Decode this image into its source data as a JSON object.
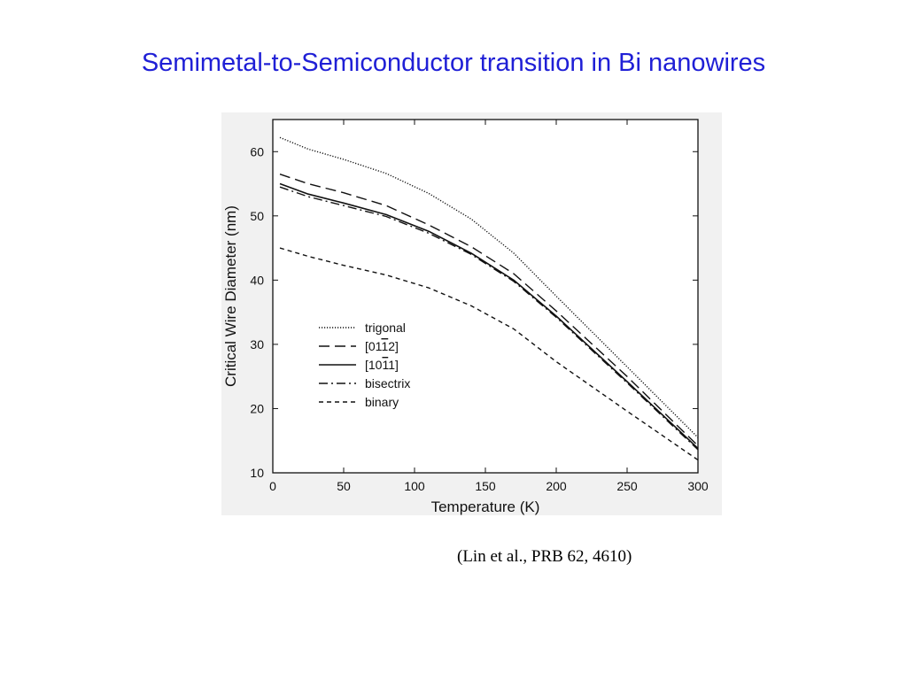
{
  "slide": {
    "title": "Semimetal-to-Semiconductor transition in Bi nanowires",
    "citation": "(Lin et al., PRB 62, 4610)",
    "title_color": "#1f1fd6"
  },
  "chart_data": {
    "type": "line",
    "title": "",
    "xlabel": "Temperature (K)",
    "ylabel": "Critical Wire Diameter (nm)",
    "xlim": [
      0,
      300
    ],
    "ylim": [
      10,
      65
    ],
    "xticks": [
      0,
      50,
      100,
      150,
      200,
      250,
      300
    ],
    "yticks": [
      10,
      20,
      30,
      40,
      50,
      60
    ],
    "grid": false,
    "legend_position": "center-left",
    "series": [
      {
        "name": "trigonal",
        "style": "dotted",
        "x": [
          5,
          25,
          50,
          80,
          110,
          140,
          170,
          200,
          250,
          300
        ],
        "y": [
          62.2,
          60.4,
          58.8,
          56.6,
          53.5,
          49.5,
          44.2,
          37.5,
          26.5,
          15.5
        ]
      },
      {
        "name": "[01̅ 1̅ 2]",
        "display_name": "[0112]",
        "overbar": "1",
        "style": "long-dashed",
        "x": [
          5,
          25,
          50,
          80,
          110,
          140,
          170,
          200,
          250,
          300
        ],
        "y": [
          56.5,
          55.0,
          53.6,
          51.6,
          48.6,
          45.2,
          41.0,
          35.2,
          25.0,
          14.2
        ]
      },
      {
        "name": "[10̅ 1̅ 1]",
        "display_name": "[1011]",
        "overbar": "1",
        "style": "solid",
        "x": [
          5,
          25,
          50,
          80,
          110,
          140,
          170,
          200,
          250,
          300
        ],
        "y": [
          55.0,
          53.4,
          52.0,
          50.2,
          47.6,
          44.2,
          40.0,
          34.4,
          24.2,
          13.8
        ]
      },
      {
        "name": "bisectrix",
        "style": "dash-dot",
        "x": [
          5,
          25,
          50,
          80,
          110,
          140,
          170,
          200,
          250,
          300
        ],
        "y": [
          54.5,
          53.0,
          51.6,
          49.9,
          47.3,
          44.0,
          39.8,
          34.2,
          24.0,
          13.6
        ]
      },
      {
        "name": "binary",
        "style": "short-dashed",
        "x": [
          5,
          25,
          50,
          80,
          110,
          140,
          170,
          200,
          250,
          300
        ],
        "y": [
          45.0,
          43.7,
          42.3,
          40.8,
          38.8,
          36.0,
          32.4,
          27.3,
          19.6,
          12.0
        ]
      }
    ]
  }
}
